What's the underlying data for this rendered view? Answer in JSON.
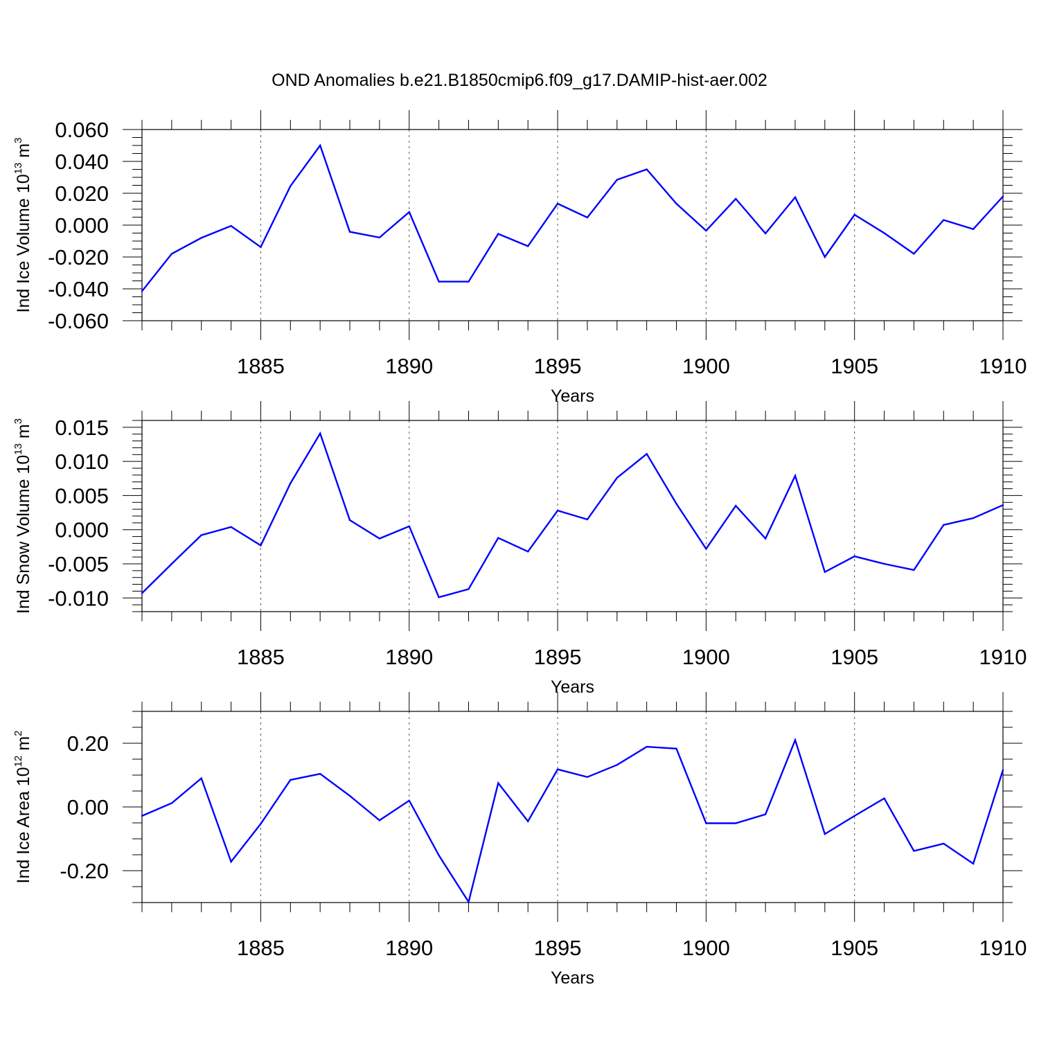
{
  "title": "OND Anomalies b.e21.B1850cmip6.f09_g17.DAMIP-hist-aer.002",
  "chart_data": [
    {
      "type": "line",
      "xlabel": "Years",
      "ylabel": {
        "text": "Ind Ice Volume 10",
        "exp": "13",
        "unit": " m",
        "unit_exp": "3"
      },
      "xlim": [
        1881,
        1910
      ],
      "ylim": [
        -0.06,
        0.06
      ],
      "xticks": [
        1885,
        1890,
        1895,
        1900,
        1905,
        1910
      ],
      "yticks": [
        -0.06,
        -0.04,
        -0.02,
        0.0,
        0.02,
        0.04,
        0.06
      ],
      "ytick_labels": [
        "-0.060",
        "-0.040",
        "-0.020",
        "0.000",
        "0.020",
        "0.040",
        "0.060"
      ],
      "ytick_minor_step": 0.005,
      "grid": "x-dashed",
      "color": "#0000ff",
      "x": [
        1881,
        1882,
        1883,
        1884,
        1885,
        1886,
        1887,
        1888,
        1889,
        1890,
        1891,
        1892,
        1893,
        1894,
        1895,
        1896,
        1897,
        1898,
        1899,
        1900,
        1901,
        1902,
        1903,
        1904,
        1905,
        1906,
        1907,
        1908,
        1909,
        1910
      ],
      "values": [
        -0.0415,
        -0.018,
        -0.008,
        -0.0005,
        -0.0138,
        0.0245,
        0.05,
        -0.0042,
        -0.0078,
        0.0082,
        -0.0355,
        -0.0355,
        -0.0055,
        -0.0132,
        0.0135,
        0.0048,
        0.0285,
        0.035,
        0.0135,
        -0.0035,
        0.0165,
        -0.0052,
        0.0175,
        -0.02,
        0.0065,
        -0.005,
        -0.018,
        0.0032,
        -0.0025,
        0.018
      ]
    },
    {
      "type": "line",
      "xlabel": "Years",
      "ylabel": {
        "text": "Ind Snow Volume 10",
        "exp": "13",
        "unit": " m",
        "unit_exp": "3"
      },
      "xlim": [
        1881,
        1910
      ],
      "ylim": [
        -0.012,
        0.016
      ],
      "xticks": [
        1885,
        1890,
        1895,
        1900,
        1905,
        1910
      ],
      "yticks": [
        -0.01,
        -0.005,
        0.0,
        0.005,
        0.01,
        0.015
      ],
      "ytick_labels": [
        "-0.010",
        "-0.005",
        "0.000",
        "0.005",
        "0.010",
        "0.015"
      ],
      "ytick_minor_step": 0.001,
      "grid": "x-dashed",
      "color": "#0000ff",
      "x": [
        1881,
        1882,
        1883,
        1884,
        1885,
        1886,
        1887,
        1888,
        1889,
        1890,
        1891,
        1892,
        1893,
        1894,
        1895,
        1896,
        1897,
        1898,
        1899,
        1900,
        1901,
        1902,
        1903,
        1904,
        1905,
        1906,
        1907,
        1908,
        1909,
        1910
      ],
      "values": [
        -0.0093,
        -0.005,
        -0.0008,
        0.0004,
        -0.0023,
        0.0068,
        0.0141,
        0.0014,
        -0.0013,
        0.0005,
        -0.0099,
        -0.0087,
        -0.0012,
        -0.0032,
        0.0028,
        0.0015,
        0.0076,
        0.0111,
        0.0038,
        -0.0028,
        0.0035,
        -0.0013,
        0.0079,
        -0.0062,
        -0.0039,
        -0.005,
        -0.0059,
        0.0007,
        0.0017,
        0.0036
      ]
    },
    {
      "type": "line",
      "xlabel": "Years",
      "ylabel": {
        "text": "Ind Ice Area 10",
        "exp": "12",
        "unit": " m",
        "unit_exp": "2"
      },
      "xlim": [
        1881,
        1910
      ],
      "ylim": [
        -0.3,
        0.3
      ],
      "xticks": [
        1885,
        1890,
        1895,
        1900,
        1905,
        1910
      ],
      "yticks": [
        -0.2,
        0.0,
        0.2
      ],
      "ytick_labels": [
        "-0.20",
        "0.00",
        "0.20"
      ],
      "ytick_minor_step": 0.05,
      "grid": "x-dashed",
      "color": "#0000ff",
      "x": [
        1881,
        1882,
        1883,
        1884,
        1885,
        1886,
        1887,
        1888,
        1889,
        1890,
        1891,
        1892,
        1893,
        1894,
        1895,
        1896,
        1897,
        1898,
        1899,
        1900,
        1901,
        1902,
        1903,
        1904,
        1905,
        1906,
        1907,
        1908,
        1909,
        1910
      ],
      "values": [
        -0.028,
        0.012,
        0.09,
        -0.172,
        -0.053,
        0.085,
        0.104,
        0.035,
        -0.042,
        0.02,
        -0.152,
        -0.298,
        0.075,
        -0.045,
        0.118,
        0.094,
        0.132,
        0.189,
        0.183,
        -0.051,
        -0.051,
        -0.023,
        0.21,
        -0.085,
        -0.028,
        0.027,
        -0.138,
        -0.115,
        -0.178,
        0.116
      ]
    }
  ]
}
